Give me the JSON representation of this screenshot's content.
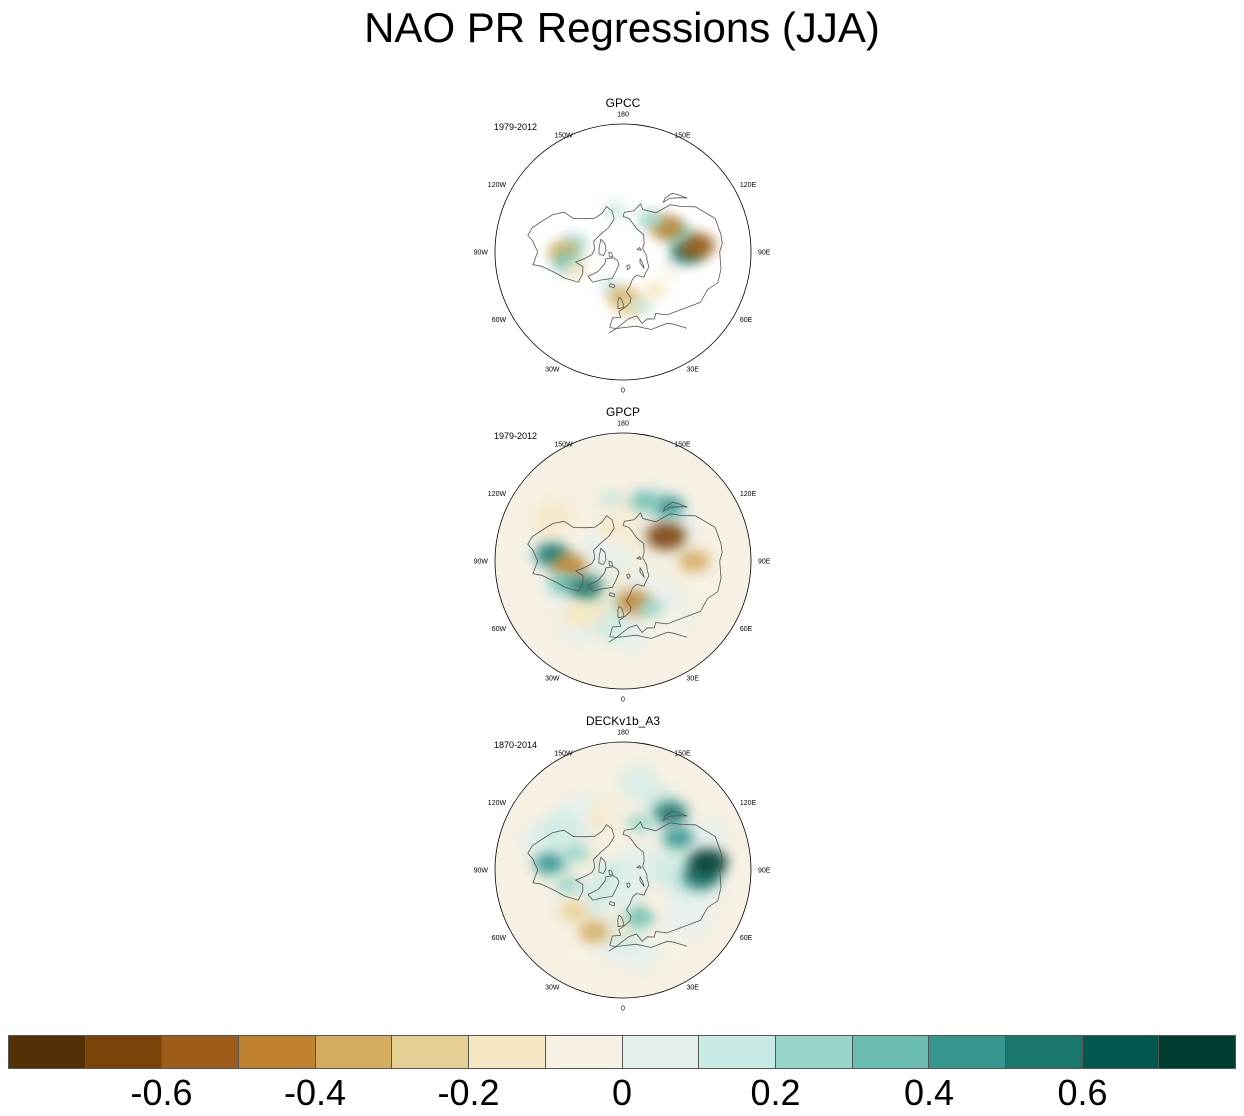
{
  "title": "NAO PR Regressions (JJA)",
  "panels": [
    {
      "name": "GPCC",
      "period": "1979-2012",
      "pattern": [
        {
          "lon": -170,
          "lat": 60,
          "v": 0.1
        },
        {
          "lon": -100,
          "lat": 55,
          "v": 0.2
        },
        {
          "lon": -90,
          "lat": 48,
          "v": -0.4
        },
        {
          "lon": -80,
          "lat": 50,
          "v": 0.3
        },
        {
          "lon": -70,
          "lat": 55,
          "v": -0.2
        },
        {
          "lon": -20,
          "lat": 64,
          "v": 0.1
        },
        {
          "lon": 0,
          "lat": 58,
          "v": -0.4
        },
        {
          "lon": 10,
          "lat": 52,
          "v": -0.3
        },
        {
          "lon": 20,
          "lat": 50,
          "v": 0.1
        },
        {
          "lon": 40,
          "lat": 55,
          "v": -0.2
        },
        {
          "lon": 70,
          "lat": 55,
          "v": -0.1
        },
        {
          "lon": 90,
          "lat": 45,
          "v": 0.5
        },
        {
          "lon": 95,
          "lat": 38,
          "v": -0.6
        },
        {
          "lon": 110,
          "lat": 50,
          "v": 0.3
        },
        {
          "lon": 120,
          "lat": 55,
          "v": -0.5
        },
        {
          "lon": 140,
          "lat": 60,
          "v": 0.2
        }
      ]
    },
    {
      "name": "GPCP",
      "period": "1979-2012",
      "pattern": [
        {
          "lon": -170,
          "lat": 45,
          "v": 0.1
        },
        {
          "lon": -160,
          "lat": 65,
          "v": -0.2
        },
        {
          "lon": -120,
          "lat": 50,
          "v": -0.1
        },
        {
          "lon": -95,
          "lat": 40,
          "v": 0.5
        },
        {
          "lon": -85,
          "lat": 52,
          "v": -0.5
        },
        {
          "lon": -70,
          "lat": 45,
          "v": 0.3
        },
        {
          "lon": -55,
          "lat": 58,
          "v": 0.5
        },
        {
          "lon": -40,
          "lat": 40,
          "v": -0.2
        },
        {
          "lon": -10,
          "lat": 62,
          "v": 0.1
        },
        {
          "lon": 15,
          "lat": 60,
          "v": -0.5
        },
        {
          "lon": 30,
          "lat": 52,
          "v": 0.2
        },
        {
          "lon": 60,
          "lat": 58,
          "v": -0.1
        },
        {
          "lon": 90,
          "lat": 40,
          "v": -0.4
        },
        {
          "lon": 120,
          "lat": 55,
          "v": -0.7
        },
        {
          "lon": 140,
          "lat": 40,
          "v": 0.4
        },
        {
          "lon": 160,
          "lat": 45,
          "v": 0.3
        }
      ]
    },
    {
      "name": "DECKv1b_A3",
      "period": "1870-2014",
      "pattern": [
        {
          "lon": -170,
          "lat": 50,
          "v": -0.1
        },
        {
          "lon": -110,
          "lat": 55,
          "v": 0.2
        },
        {
          "lon": -95,
          "lat": 38,
          "v": 0.4
        },
        {
          "lon": -75,
          "lat": 50,
          "v": 0.2
        },
        {
          "lon": -50,
          "lat": 45,
          "v": -0.3
        },
        {
          "lon": -25,
          "lat": 42,
          "v": -0.4
        },
        {
          "lon": 0,
          "lat": 50,
          "v": -0.2
        },
        {
          "lon": 20,
          "lat": 55,
          "v": 0.3
        },
        {
          "lon": 50,
          "lat": 55,
          "v": -0.1
        },
        {
          "lon": 85,
          "lat": 35,
          "v": 0.6
        },
        {
          "lon": 95,
          "lat": 30,
          "v": 0.7
        },
        {
          "lon": 120,
          "lat": 45,
          "v": 0.4
        },
        {
          "lon": 140,
          "lat": 38,
          "v": 0.5
        },
        {
          "lon": 160,
          "lat": 55,
          "v": 0.2
        }
      ]
    }
  ],
  "longitude_labels": [
    "180",
    "150E",
    "120E",
    "90E",
    "60E",
    "30E",
    "0",
    "30W",
    "60W",
    "90W",
    "120W",
    "150W"
  ],
  "colorbar": {
    "colors": [
      "#543005",
      "#7a430a",
      "#9c5b18",
      "#bf812d",
      "#d3ac60",
      "#e6cf93",
      "#f5e7c2",
      "#f6f1e4",
      "#e4f0ee",
      "#c7eae4",
      "#97d5c9",
      "#6bbdb0",
      "#35978f",
      "#1a776e",
      "#01584e",
      "#003c30"
    ],
    "labels": [
      "-0.6",
      "-0.4",
      "-0.2",
      "0",
      "0.2",
      "0.4",
      "0.6"
    ]
  },
  "chart_data": {
    "type": "polar_map",
    "title": "NAO PR Regressions (JJA)",
    "projection": "north-polar-stereographic",
    "panels": [
      "GPCC",
      "GPCP",
      "DECKv1b_A3"
    ],
    "periods": [
      "1979-2012",
      "1979-2012",
      "1870-2014"
    ],
    "colorbar_levels": [
      -0.7,
      -0.6,
      -0.5,
      -0.4,
      -0.3,
      -0.2,
      -0.1,
      0,
      0.1,
      0.2,
      0.3,
      0.4,
      0.5,
      0.6,
      0.7
    ],
    "colorbar_ticks": [
      -0.6,
      -0.4,
      -0.2,
      0,
      0.2,
      0.4,
      0.6
    ]
  }
}
